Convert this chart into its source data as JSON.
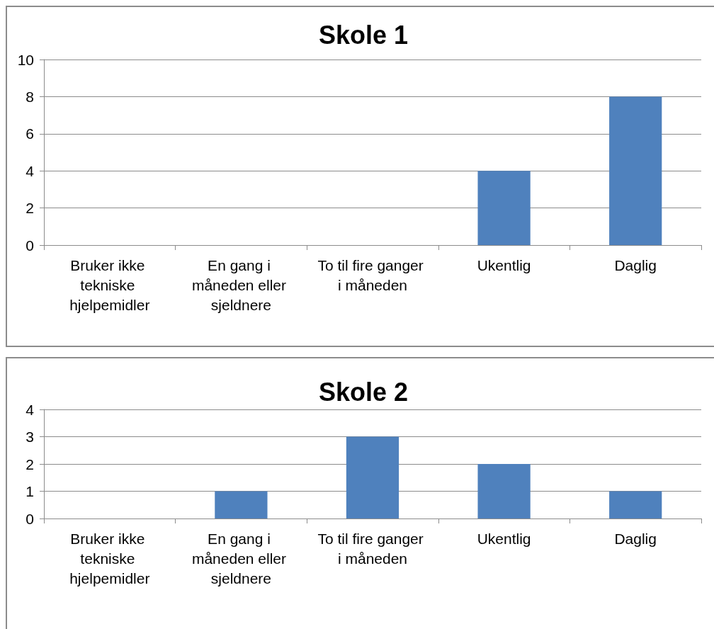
{
  "chart_data": [
    {
      "type": "bar",
      "title": "Skole 1",
      "categories": [
        "Bruker ikke tekniske hjelpemidler",
        "En gang i måneden eller sjeldnere",
        "To til fire ganger i måneden",
        "Ukentlig",
        "Daglig"
      ],
      "values": [
        0,
        0,
        0,
        4,
        8
      ],
      "color": "#4f81bd",
      "ylim": [
        0,
        10
      ],
      "yticks": [
        0,
        2,
        4,
        6,
        8,
        10
      ],
      "grid": "y"
    },
    {
      "type": "bar",
      "title": "Skole 2",
      "categories": [
        "Bruker ikke tekniske hjelpemidler",
        "En gang i måneden eller sjeldnere",
        "To til fire ganger i måneden",
        "Ukentlig",
        "Daglig"
      ],
      "values": [
        0,
        1,
        3,
        2,
        1
      ],
      "color": "#4f81bd",
      "ylim": [
        0,
        4
      ],
      "yticks": [
        0,
        1,
        2,
        3,
        4
      ],
      "grid": "y"
    }
  ]
}
